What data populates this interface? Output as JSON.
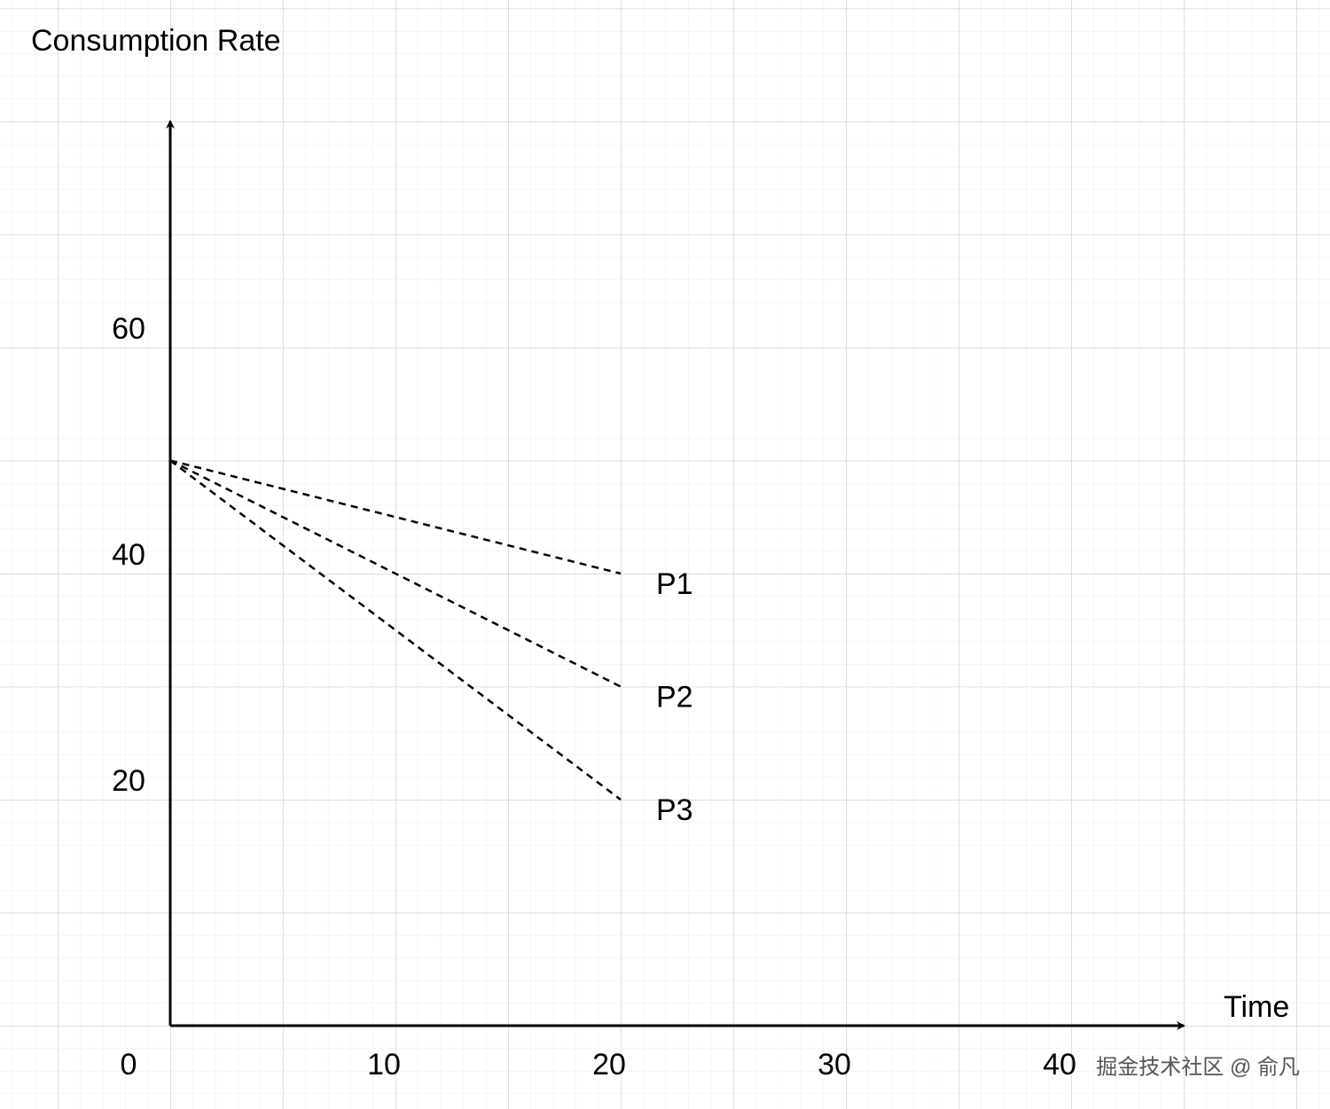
{
  "chart_data": {
    "type": "line",
    "title": "Consumption Rate",
    "x_label": "Time",
    "x": [
      0,
      20
    ],
    "series": [
      {
        "name": "P1",
        "color": "#000000",
        "values": [
          50,
          40
        ]
      },
      {
        "name": "P2",
        "color": "#000000",
        "values": [
          50,
          30
        ]
      },
      {
        "name": "P3",
        "color": "#000000",
        "values": [
          50,
          20
        ]
      }
    ],
    "xlim": [
      0,
      45
    ],
    "ylim": [
      0,
      80
    ],
    "xticks": [
      0,
      10,
      20,
      30,
      40
    ],
    "yticks": [
      20,
      40,
      60
    ],
    "dashed": true,
    "watermark": "掘金技术社区 @ 俞凡"
  }
}
